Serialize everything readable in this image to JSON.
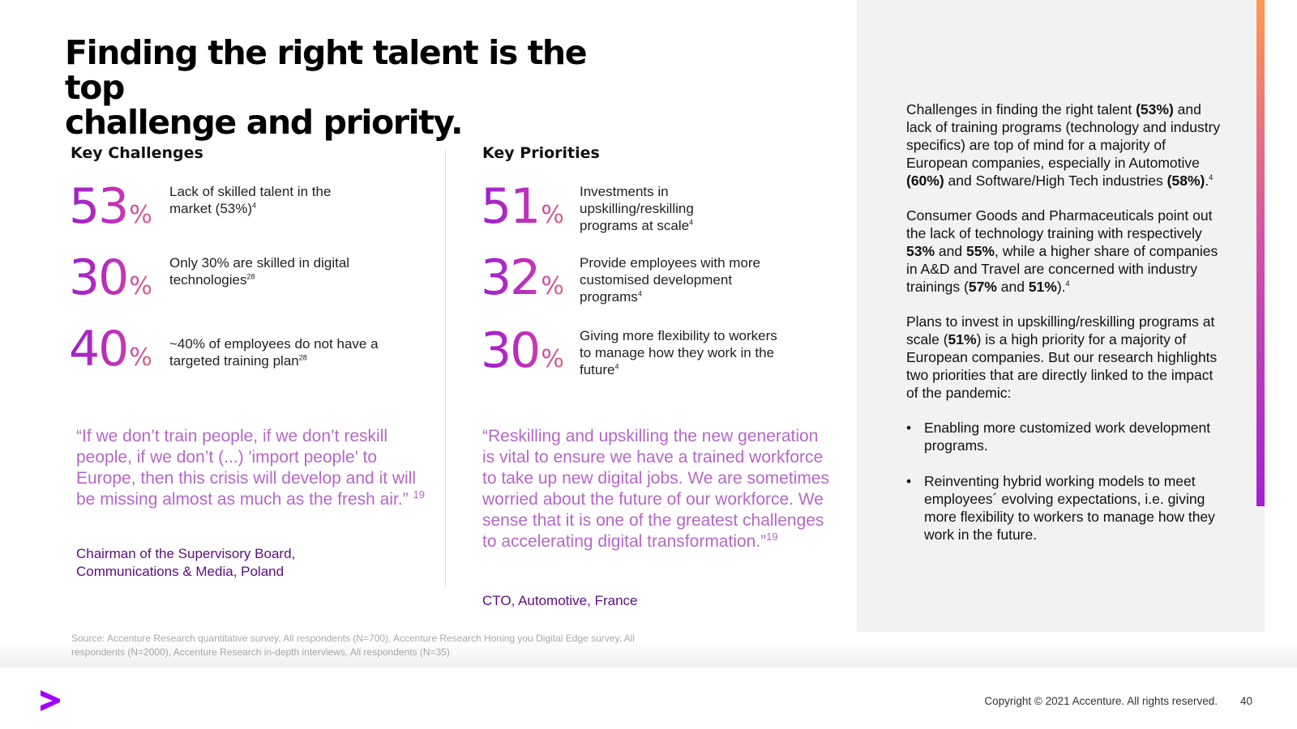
{
  "title": {
    "line1": "Finding the right talent is the top",
    "line2": "challenge and priority."
  },
  "challenges": {
    "heading": "Key Challenges",
    "items": [
      {
        "number": "53",
        "unit": "%",
        "text": "Lack of skilled talent in the market (53%)",
        "ref": "4"
      },
      {
        "number": "30",
        "unit": "%",
        "text": "Only 30% are skilled in digital technologies",
        "ref": "28"
      },
      {
        "number": "40",
        "unit": "%",
        "text": "~40% of employees do not have a targeted training plan",
        "ref": "28"
      }
    ],
    "quote": "“If we don’t train people, if we don’t reskill people, if we don’t (...) 'import people' to Europe, then this crisis will develop and it will be missing almost as much as the fresh air.”",
    "quote_ref": "19",
    "attribution_line1": "Chairman of the Supervisory Board,",
    "attribution_line2": "Communications & Media, Poland"
  },
  "priorities": {
    "heading": "Key Priorities",
    "items": [
      {
        "number": "51",
        "unit": "%",
        "text": "Investments in upskilling/reskilling programs at scale",
        "ref": "4"
      },
      {
        "number": "32",
        "unit": "%",
        "text": "Provide employees with more customised development programs",
        "ref": "4"
      },
      {
        "number": "30",
        "unit": "%",
        "text": "Giving more flexibility to workers to manage how they work in the future",
        "ref": "4"
      }
    ],
    "quote": "“Reskilling and upskilling the new generation is vital to ensure we have a trained workforce to take up new digital jobs. We are sometimes worried about the future of our workforce. We sense that it is one of the greatest challenges to accelerating digital transformation.”",
    "quote_ref": "19",
    "attribution": "CTO, Automotive, France"
  },
  "source": "Source: Accenture Research quantitative survey, All respondents (N=700), Accenture Research Honing you Digital Edge survey, All respondents (N=2000), Accenture Research in-depth interviews, All respondents (N=35)",
  "panel": {
    "p1": {
      "t1": "Challenges in finding the right talent ",
      "b1": "(53%)",
      "t2": " and lack of training programs (technology and industry specifics) are top of mind for a majority of European companies, especially in Automotive ",
      "b2": "(60%)",
      "t3": " and Software/High Tech industries ",
      "b3": "(58%)",
      "t4": ".",
      "ref": "4"
    },
    "p2": {
      "t1": "Consumer Goods and Pharmaceuticals point out the lack of  technology training with respectively ",
      "b1": "53%",
      "t2": " and ",
      "b2": "55%",
      "t3": ", while a higher share of companies in A&D and Travel are concerned with industry trainings (",
      "b3": "57%",
      "t4": " and ",
      "b4": "51%",
      "t5": ").",
      "ref": "4"
    },
    "p3": {
      "t1": "Plans to invest in upskilling/reskilling programs at scale (",
      "b1": "51%",
      "t2": ") is a high priority for a majority of European companies. But our research highlights two priorities that are directly linked to the impact of the pandemic:"
    },
    "bullets": [
      "Enabling more customized work development programs.",
      "Reinventing hybrid working models to meet employees´ evolving expectations, i.e. giving more flexibility to workers to manage how they work in the future."
    ]
  },
  "footer": {
    "copyright": "Copyright © 2021 Accenture. All rights reserved.",
    "page": "40",
    "logo_icon": "accenture-chevron-icon"
  },
  "colors": {
    "accent": "#a100ff",
    "quote": "#b468c8",
    "attribution": "#5a0f7e",
    "panel_bg": "#f2f2f2"
  }
}
